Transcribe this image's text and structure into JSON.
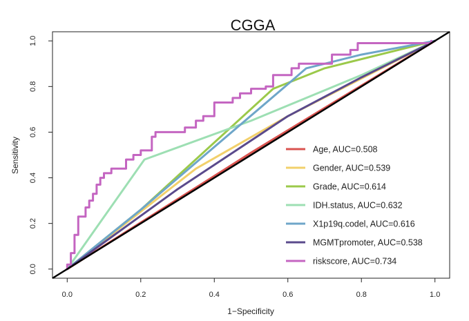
{
  "chart_data": {
    "type": "line",
    "title": "CGGA",
    "xlabel": "1−Specificity",
    "ylabel": "Sensitivity",
    "xlim": [
      -0.04,
      1.04
    ],
    "ylim": [
      -0.04,
      1.04
    ],
    "xticks": [
      "0.0",
      "0.2",
      "0.4",
      "0.6",
      "0.8",
      "1.0"
    ],
    "yticks": [
      "0.0",
      "0.2",
      "0.4",
      "0.6",
      "0.8",
      "1.0"
    ],
    "grid": false,
    "legend_position": "bottom-right",
    "reference_line": {
      "x": [
        -0.04,
        1.04
      ],
      "y": [
        -0.04,
        1.04
      ],
      "color": "#000000"
    },
    "series": [
      {
        "name": "Age",
        "label": "Age, AUC=0.508",
        "color": "#d9534f",
        "x": [
          0,
          0.5,
          1
        ],
        "y": [
          0,
          0.51,
          1
        ]
      },
      {
        "name": "Gender",
        "label": "Gender, AUC=0.539",
        "color": "#f2d06b",
        "x": [
          0,
          0.35,
          0.6,
          1
        ],
        "y": [
          0,
          0.44,
          0.67,
          1
        ]
      },
      {
        "name": "Grade",
        "label": "Grade, AUC=0.614",
        "color": "#9bc94a",
        "x": [
          0,
          0.2,
          0.56,
          0.7,
          1
        ],
        "y": [
          0,
          0.26,
          0.79,
          0.88,
          1
        ]
      },
      {
        "name": "IDH.status",
        "label": "IDH.status, AUC=0.632",
        "color": "#9ddfb3",
        "x": [
          0,
          0.21,
          0.5,
          0.8,
          1
        ],
        "y": [
          0,
          0.48,
          0.65,
          0.85,
          1
        ]
      },
      {
        "name": "X1p19q.codel",
        "label": "X1p19q.codel, AUC=0.616",
        "color": "#6ea6c9",
        "x": [
          0,
          0.2,
          0.6,
          0.65,
          0.8,
          1
        ],
        "y": [
          0,
          0.26,
          0.81,
          0.88,
          0.94,
          1
        ]
      },
      {
        "name": "MGMTpromoter",
        "label": "MGMTpromoter, AUC=0.538",
        "color": "#5a4a8c",
        "x": [
          0,
          0.3,
          0.6,
          0.8,
          1
        ],
        "y": [
          0,
          0.35,
          0.67,
          0.84,
          1
        ]
      },
      {
        "name": "riskscore",
        "label": "riskscore, AUC=0.734",
        "color": "#c465c1",
        "x": [
          0,
          0,
          0.01,
          0.01,
          0.02,
          0.02,
          0.03,
          0.03,
          0.05,
          0.05,
          0.06,
          0.06,
          0.07,
          0.07,
          0.08,
          0.08,
          0.09,
          0.09,
          0.1,
          0.1,
          0.12,
          0.12,
          0.16,
          0.16,
          0.18,
          0.18,
          0.2,
          0.2,
          0.23,
          0.23,
          0.24,
          0.24,
          0.32,
          0.32,
          0.35,
          0.35,
          0.37,
          0.37,
          0.4,
          0.4,
          0.45,
          0.45,
          0.47,
          0.47,
          0.5,
          0.5,
          0.54,
          0.54,
          0.56,
          0.56,
          0.61,
          0.61,
          0.63,
          0.63,
          0.72,
          0.72,
          0.77,
          0.77,
          0.79,
          0.79,
          0.99,
          0.99
        ],
        "y": [
          0,
          0.02,
          0.02,
          0.07,
          0.07,
          0.15,
          0.15,
          0.23,
          0.23,
          0.27,
          0.27,
          0.3,
          0.3,
          0.33,
          0.33,
          0.37,
          0.37,
          0.4,
          0.4,
          0.42,
          0.42,
          0.44,
          0.44,
          0.48,
          0.48,
          0.5,
          0.5,
          0.52,
          0.52,
          0.58,
          0.58,
          0.6,
          0.6,
          0.62,
          0.62,
          0.65,
          0.65,
          0.67,
          0.67,
          0.73,
          0.73,
          0.75,
          0.75,
          0.77,
          0.77,
          0.79,
          0.79,
          0.8,
          0.8,
          0.85,
          0.85,
          0.88,
          0.88,
          0.9,
          0.9,
          0.94,
          0.94,
          0.96,
          0.96,
          0.99,
          0.99,
          1.0
        ]
      }
    ]
  }
}
